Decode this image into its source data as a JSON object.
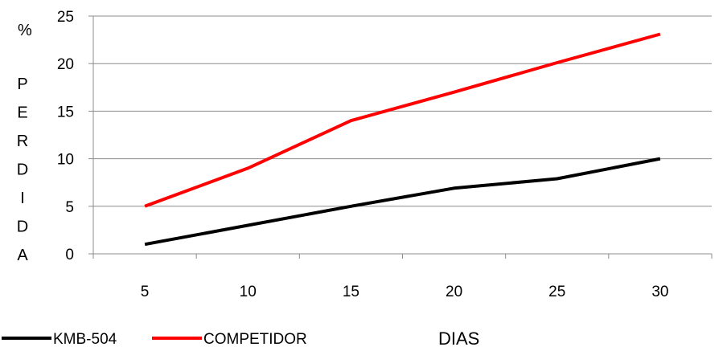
{
  "chart_data": {
    "type": "line",
    "x": [
      5,
      10,
      15,
      20,
      25,
      30
    ],
    "categories": [
      "5",
      "10",
      "15",
      "20",
      "25",
      "30"
    ],
    "series": [
      {
        "name": "KMB-504",
        "values": [
          1,
          3,
          5,
          6.9,
          7.9,
          10
        ],
        "color": "#000000"
      },
      {
        "name": "COMPETIDOR",
        "values": [
          5,
          9,
          14,
          17,
          20.1,
          23.1
        ],
        "color": "#ff0000"
      }
    ],
    "ylim": [
      0,
      25
    ],
    "yticks": [
      "0",
      "5",
      "10",
      "15",
      "20",
      "25"
    ],
    "ylabel": "%",
    "ylabel_vertical": [
      "P",
      "E",
      "R",
      "D",
      "I",
      "D",
      "A"
    ],
    "xlabel": "DIAS",
    "grid": "horizontal",
    "legend_position": "bottom-left"
  }
}
